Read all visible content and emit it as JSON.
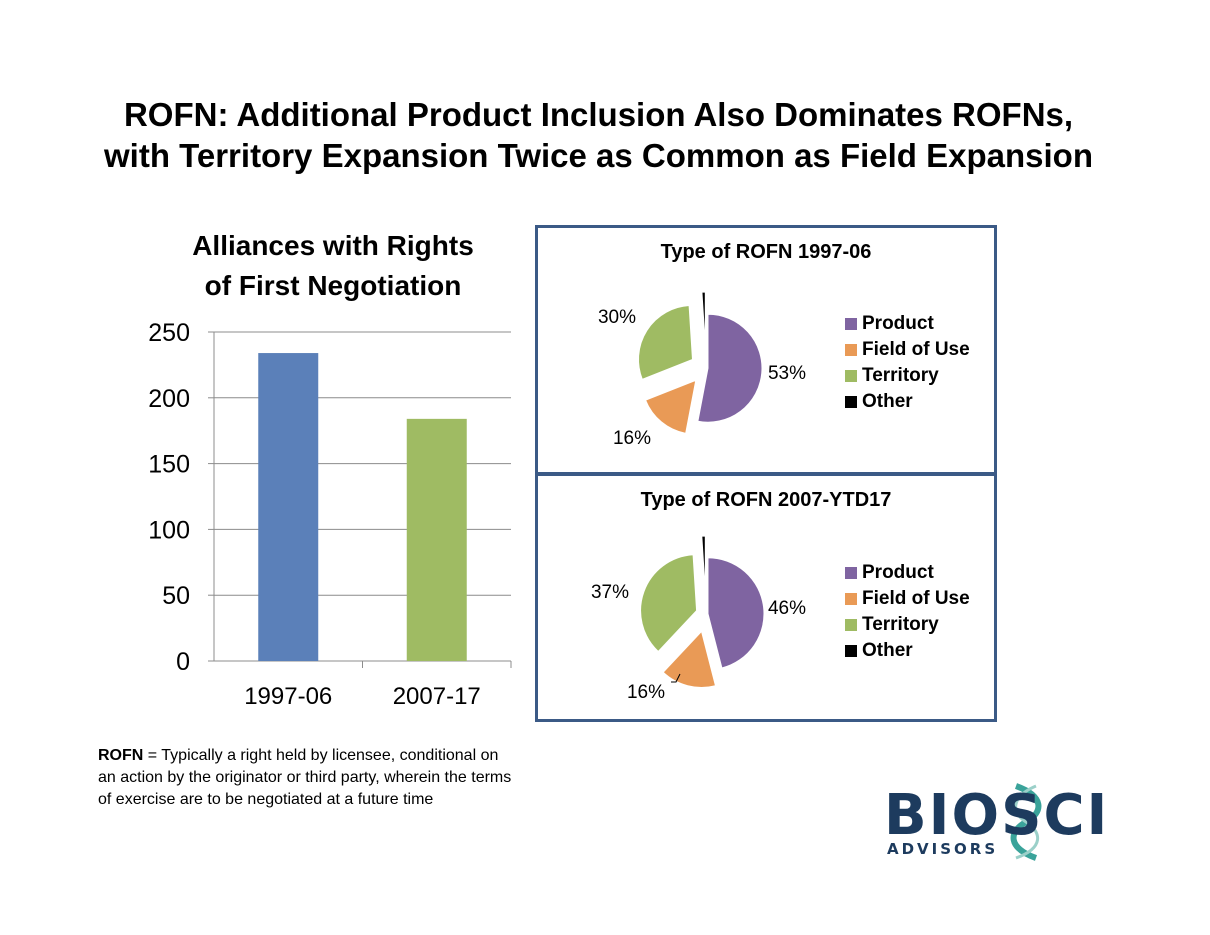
{
  "slide": {
    "title_line1": "ROFN:  Additional Product Inclusion Also Dominates ROFNs,",
    "title_line2": "with Territory Expansion Twice as Common as Field Expansion"
  },
  "bar_chart_title_line1": "Alliances with Rights",
  "bar_chart_title_line2": "of First Negotiation",
  "footnote": {
    "term": "ROFN",
    "line1_rest": " = Typically a right held by licensee, conditional on",
    "line2": "an action by the originator or third party, wherein the terms",
    "line3": "of exercise are to be negotiated at a future time"
  },
  "logo": {
    "main": "BIOSCI",
    "sub": "ADVISORS",
    "colors": {
      "navy": "#1d3b5e",
      "teal": "#3aa39a"
    }
  },
  "colors": {
    "product": "#7f64a1",
    "field_of_use": "#e99a56",
    "territory": "#9fbb63",
    "other": "#000000",
    "bar_1997_06": "#5b80b9",
    "bar_2007_17": "#9fbb63",
    "box_border": "#3b5a86"
  },
  "chart_data": [
    {
      "type": "bar",
      "title": "Alliances with Rights of First Negotiation",
      "categories": [
        "1997-06",
        "2007-17"
      ],
      "values": [
        234,
        184
      ],
      "ylim": [
        0,
        250
      ],
      "yticks": [
        0,
        50,
        100,
        150,
        200,
        250
      ],
      "grid": true,
      "xlabel": "",
      "ylabel": ""
    },
    {
      "type": "pie",
      "title": "Type of ROFN 1997-06",
      "labels": [
        "Product",
        "Field of Use",
        "Territory",
        "Other"
      ],
      "values": [
        53,
        16,
        30,
        1
      ],
      "data_labels": [
        "53%",
        "16%",
        "30%",
        ""
      ],
      "exploded": true,
      "legend": "right"
    },
    {
      "type": "pie",
      "title": "Type of ROFN 2007-YTD17",
      "labels": [
        "Product",
        "Field of Use",
        "Territory",
        "Other"
      ],
      "values": [
        46,
        16,
        37,
        1
      ],
      "data_labels": [
        "46%",
        "16%",
        "37%",
        ""
      ],
      "exploded": true,
      "legend": "right"
    }
  ]
}
